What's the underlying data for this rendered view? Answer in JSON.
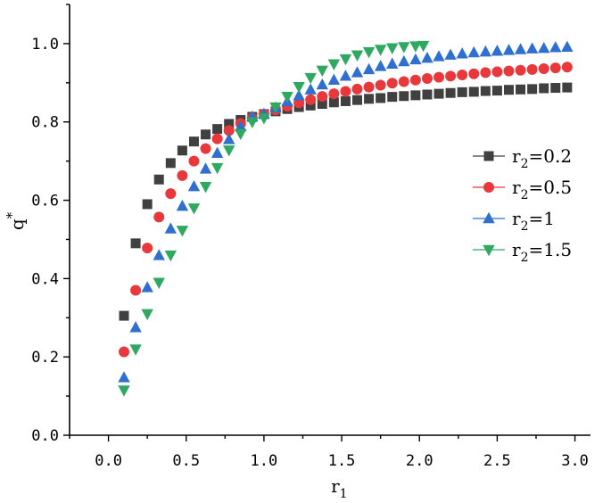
{
  "chart_data": {
    "type": "scatter",
    "xlabel": "r1",
    "ylabel": "q*",
    "xlim": [
      -0.25,
      3.1
    ],
    "ylim": [
      0.0,
      1.1
    ],
    "xticks": [
      "0.0",
      "0.5",
      "1.0",
      "1.5",
      "2.0",
      "2.5",
      "3.0"
    ],
    "xtick_values": [
      0.0,
      0.5,
      1.0,
      1.5,
      2.0,
      2.5,
      3.0
    ],
    "yticks": [
      "0.0",
      "0.2",
      "0.4",
      "0.6",
      "0.8",
      "1.0"
    ],
    "ytick_values": [
      0.0,
      0.2,
      0.4,
      0.6,
      0.8,
      1.0
    ],
    "legend_position": "right",
    "series": [
      {
        "name": "r2=0.2",
        "legend_base": "r",
        "legend_sub": "2",
        "legend_value": "=0.2",
        "marker": "square",
        "color": "#404040",
        "x": [
          0.1,
          0.175,
          0.25,
          0.325,
          0.4,
          0.475,
          0.55,
          0.625,
          0.7,
          0.775,
          0.85,
          0.925,
          1.0,
          1.075,
          1.15,
          1.225,
          1.3,
          1.375,
          1.45,
          1.525,
          1.6,
          1.675,
          1.75,
          1.825,
          1.9,
          1.975,
          2.05,
          2.125,
          2.2,
          2.275,
          2.35,
          2.425,
          2.5,
          2.575,
          2.65,
          2.725,
          2.8,
          2.875,
          2.95
        ],
        "y": [
          0.305,
          0.49,
          0.59,
          0.653,
          0.695,
          0.727,
          0.75,
          0.768,
          0.782,
          0.795,
          0.805,
          0.813,
          0.82,
          0.827,
          0.833,
          0.838,
          0.842,
          0.846,
          0.85,
          0.853,
          0.856,
          0.859,
          0.861,
          0.864,
          0.866,
          0.868,
          0.87,
          0.872,
          0.874,
          0.876,
          0.877,
          0.879,
          0.88,
          0.882,
          0.883,
          0.884,
          0.886,
          0.887,
          0.888
        ]
      },
      {
        "name": "r2=0.5",
        "legend_base": "r",
        "legend_sub": "2",
        "legend_value": "=0.5",
        "marker": "circle",
        "color": "#e8383c",
        "x": [
          0.1,
          0.175,
          0.25,
          0.325,
          0.4,
          0.475,
          0.55,
          0.625,
          0.7,
          0.775,
          0.85,
          0.925,
          1.0,
          1.075,
          1.15,
          1.225,
          1.3,
          1.375,
          1.45,
          1.525,
          1.6,
          1.675,
          1.75,
          1.825,
          1.9,
          1.975,
          2.05,
          2.125,
          2.2,
          2.275,
          2.35,
          2.425,
          2.5,
          2.575,
          2.65,
          2.725,
          2.8,
          2.875,
          2.95
        ],
        "y": [
          0.213,
          0.37,
          0.478,
          0.557,
          0.617,
          0.663,
          0.7,
          0.732,
          0.757,
          0.778,
          0.796,
          0.81,
          0.82,
          0.83,
          0.84,
          0.849,
          0.857,
          0.865,
          0.872,
          0.878,
          0.884,
          0.889,
          0.894,
          0.899,
          0.903,
          0.907,
          0.911,
          0.914,
          0.917,
          0.92,
          0.923,
          0.926,
          0.928,
          0.93,
          0.932,
          0.934,
          0.936,
          0.938,
          0.94
        ]
      },
      {
        "name": "r2=1",
        "legend_base": "r",
        "legend_sub": "2",
        "legend_value": "=1",
        "marker": "triangle-up",
        "color": "#2f6fd0",
        "x": [
          0.1,
          0.175,
          0.25,
          0.325,
          0.4,
          0.475,
          0.55,
          0.625,
          0.7,
          0.775,
          0.85,
          0.925,
          1.0,
          1.075,
          1.15,
          1.225,
          1.3,
          1.375,
          1.45,
          1.525,
          1.6,
          1.675,
          1.75,
          1.825,
          1.9,
          1.975,
          2.05,
          2.125,
          2.2,
          2.275,
          2.35,
          2.425,
          2.5,
          2.575,
          2.65,
          2.725,
          2.8,
          2.875,
          2.95
        ],
        "y": [
          0.147,
          0.275,
          0.377,
          0.459,
          0.527,
          0.585,
          0.635,
          0.68,
          0.72,
          0.755,
          0.788,
          0.813,
          0.82,
          0.836,
          0.852,
          0.867,
          0.882,
          0.895,
          0.907,
          0.917,
          0.926,
          0.934,
          0.942,
          0.948,
          0.954,
          0.959,
          0.963,
          0.967,
          0.971,
          0.974,
          0.977,
          0.979,
          0.981,
          0.983,
          0.985,
          0.987,
          0.988,
          0.99,
          0.991
        ]
      },
      {
        "name": "r2=1.5",
        "legend_base": "r",
        "legend_sub": "2",
        "legend_value": "=1.5",
        "marker": "triangle-down",
        "color": "#2fa862",
        "x": [
          0.1,
          0.175,
          0.25,
          0.325,
          0.4,
          0.475,
          0.55,
          0.625,
          0.7,
          0.775,
          0.85,
          0.925,
          1.0,
          1.075,
          1.15,
          1.225,
          1.3,
          1.375,
          1.45,
          1.525,
          1.6,
          1.675,
          1.75,
          1.825,
          1.9,
          1.975,
          2.025
        ],
        "y": [
          0.115,
          0.22,
          0.31,
          0.39,
          0.46,
          0.523,
          0.58,
          0.635,
          0.683,
          0.728,
          0.77,
          0.8,
          0.81,
          0.838,
          0.865,
          0.89,
          0.913,
          0.932,
          0.948,
          0.961,
          0.971,
          0.979,
          0.985,
          0.989,
          0.992,
          0.994,
          0.995
        ]
      }
    ]
  }
}
